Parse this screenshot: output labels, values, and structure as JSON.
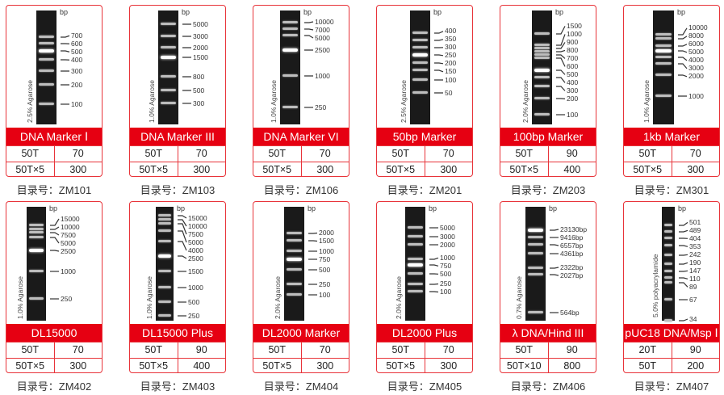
{
  "accent_color": "#e60012",
  "cards": [
    {
      "title": "DNA Marker Ⅰ",
      "gel": "2.5% Agarose",
      "unit": "bp",
      "bands": [
        "700",
        "600",
        "500",
        "400",
        "300",
        "200",
        "100"
      ],
      "rows": [
        [
          "50T",
          "70"
        ],
        [
          "50T×5",
          "300"
        ]
      ],
      "catalog": "目录号：ZM101"
    },
    {
      "title": "DNA Marker III",
      "gel": "1.0% Agarose",
      "unit": "bp",
      "bands": [
        "5000",
        "3000",
        "2000",
        "1500",
        "800",
        "500",
        "300"
      ],
      "rows": [
        [
          "50T",
          "70"
        ],
        [
          "50T×5",
          "300"
        ]
      ],
      "catalog": "目录号：ZM103"
    },
    {
      "title": "DNA Marker VI",
      "gel": "1.0% Agarose",
      "unit": "bp",
      "bands": [
        "10000",
        "7000",
        "5000",
        "2500",
        "1000",
        "250"
      ],
      "rows": [
        [
          "50T",
          "70"
        ],
        [
          "50T×5",
          "300"
        ]
      ],
      "catalog": "目录号：ZM106"
    },
    {
      "title": "50bp Marker",
      "gel": "2.5% Agarose",
      "unit": "bp",
      "bands": [
        "400",
        "350",
        "300",
        "250",
        "200",
        "150",
        "100",
        "50"
      ],
      "rows": [
        [
          "50T",
          "70"
        ],
        [
          "50T×5",
          "300"
        ]
      ],
      "catalog": "目录号：ZM201"
    },
    {
      "title": "100bp Marker",
      "gel": "2.0% Agarose",
      "unit": "bp",
      "bands": [
        "1500",
        "1000",
        "900",
        "800",
        "700",
        "600",
        "500",
        "400",
        "300",
        "200",
        "100"
      ],
      "rows": [
        [
          "50T",
          "90"
        ],
        [
          "50T×5",
          "400"
        ]
      ],
      "catalog": "目录号：ZM203"
    },
    {
      "title": "1kb Marker",
      "gel": "1.0% Agarose",
      "unit": "bp",
      "bands": [
        "10000",
        "8000",
        "6000",
        "5000",
        "4000",
        "3000",
        "2000",
        "1000"
      ],
      "rows": [
        [
          "50T",
          "70"
        ],
        [
          "50T×5",
          "300"
        ]
      ],
      "catalog": "目录号：ZM301"
    },
    {
      "title": "DL15000",
      "gel": "1.0% Agarose",
      "unit": "bp",
      "bands": [
        "15000",
        "10000",
        "7500",
        "5000",
        "2500",
        "1000",
        "250"
      ],
      "rows": [
        [
          "50T",
          "70"
        ],
        [
          "50T×5",
          "300"
        ]
      ],
      "catalog": "目录号：ZM402"
    },
    {
      "title": "DL15000 Plus",
      "gel": "1.0% Agarose",
      "unit": "bp",
      "bands": [
        "15000",
        "10000",
        "7500",
        "5000",
        "4000",
        "2500",
        "1500",
        "1000",
        "500",
        "250"
      ],
      "rows": [
        [
          "50T",
          "90"
        ],
        [
          "50T×5",
          "400"
        ]
      ],
      "catalog": "目录号：ZM403"
    },
    {
      "title": "DL2000 Marker",
      "gel": "2.0% Agarose",
      "unit": "bp",
      "bands": [
        "2000",
        "1500",
        "1000",
        "750",
        "500",
        "250",
        "100"
      ],
      "rows": [
        [
          "50T",
          "70"
        ],
        [
          "50T×5",
          "300"
        ]
      ],
      "catalog": "目录号：ZM404"
    },
    {
      "title": "DL2000 Plus",
      "gel": "2.0% Agarose",
      "unit": "bp",
      "bands": [
        "5000",
        "3000",
        "2000",
        "1000",
        "750",
        "500",
        "250",
        "100"
      ],
      "rows": [
        [
          "50T",
          "70"
        ],
        [
          "50T×5",
          "300"
        ]
      ],
      "catalog": "目录号：ZM405"
    },
    {
      "title": "λ DNA/Hind III",
      "gel": "0.7% Agarose",
      "unit": "bp",
      "bands": [
        "23130bp",
        "9416bp",
        "6557bp",
        "4361bp",
        "2322bp",
        "2027bp",
        "564bp"
      ],
      "rows": [
        [
          "50T",
          "90"
        ],
        [
          "50T×10",
          "800"
        ]
      ],
      "catalog": "目录号：ZM406"
    },
    {
      "title": "pUC18 DNA/Msp Ⅰ",
      "gel": "5.0% polyacrylamide",
      "unit": "bp",
      "bands": [
        "501",
        "489",
        "404",
        "353",
        "242",
        "190",
        "147",
        "110",
        "89",
        "67",
        "34"
      ],
      "rows": [
        [
          "20T",
          "90"
        ],
        [
          "50T",
          "200"
        ]
      ],
      "catalog": "目录号：ZM407"
    }
  ]
}
